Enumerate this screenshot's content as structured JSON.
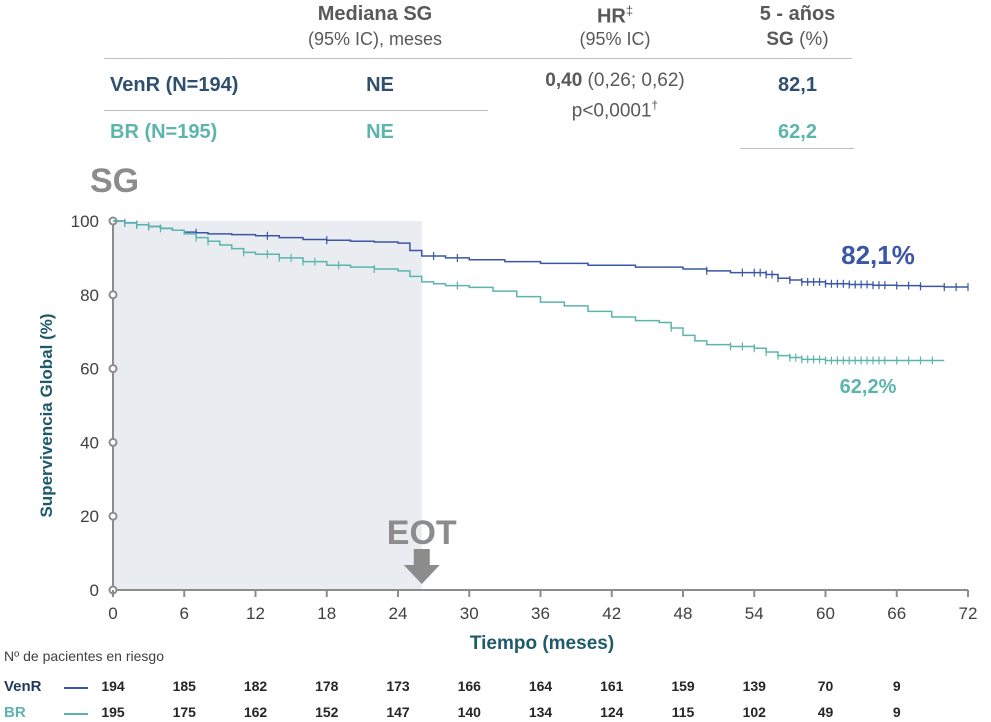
{
  "table": {
    "col_median_title": "Mediana SG",
    "col_median_sub": "(95% IC), meses",
    "col_hr_title": "HR",
    "col_hr_sup": "‡",
    "col_hr_sub": "(95% IC)",
    "col_5y_title": "5 - años",
    "col_5y_sub_bold": "SG",
    "col_5y_sub_rest": " (%)",
    "venr_label": "VenR (N=194)",
    "venr_median": "NE",
    "venr_5y": "82,1",
    "br_label": "BR (N=195)",
    "br_median": "NE",
    "br_5y": "62,2",
    "hr_value": "0,40",
    "hr_ci": " (0,26; 0,62)",
    "p_value": "p<0,0001",
    "p_sup": "†"
  },
  "colors": {
    "venr": "#3b56a6",
    "br": "#5cb5ad",
    "axis": "#8c8c8c",
    "shade": "#e9ecf0",
    "label": "#1f5a6a"
  },
  "chart_data": {
    "type": "line",
    "title": "SG",
    "xlabel": "Tiempo (meses)",
    "ylabel": "Supervivencia Global (%)",
    "xlim": [
      0,
      72
    ],
    "ylim": [
      0,
      100
    ],
    "xticks": [
      "0",
      "6",
      "12",
      "18",
      "24",
      "30",
      "36",
      "42",
      "48",
      "54",
      "60",
      "66",
      "72"
    ],
    "yticks": [
      "0",
      "20",
      "40",
      "60",
      "80",
      "100"
    ],
    "shaded_region": [
      0,
      26
    ],
    "annotation_eot": {
      "label": "EOT",
      "x": 26
    },
    "end_labels": {
      "venr": "82,1%",
      "br": "62,2%"
    },
    "series": [
      {
        "name": "VenR",
        "x": [
          0,
          1,
          2,
          3,
          4,
          5,
          6,
          7,
          8,
          10,
          12,
          14,
          16,
          18,
          20,
          22,
          24,
          25,
          26,
          28,
          30,
          33,
          36,
          40,
          44,
          48,
          50,
          52,
          54,
          55,
          56,
          57,
          58,
          60,
          62,
          64,
          66,
          68,
          70,
          72
        ],
        "y": [
          100,
          99.5,
          99,
          98.5,
          98,
          97.5,
          97,
          96.8,
          96.5,
          96.3,
          96,
          95.5,
          95,
          94.8,
          94.5,
          94.3,
          94,
          92,
          90.5,
          90,
          89.5,
          89,
          88.5,
          88,
          87.5,
          87,
          86.5,
          86,
          86,
          85.5,
          84.5,
          84,
          83.5,
          83,
          82.8,
          82.6,
          82.5,
          82.3,
          82.1,
          82.1
        ],
        "censor_x": [
          1,
          2,
          3,
          7,
          13,
          18,
          27,
          29,
          50,
          53,
          54,
          54.5,
          55,
          55.5,
          56,
          57,
          58,
          58.5,
          59,
          59.5,
          60,
          60.5,
          61,
          61.5,
          62,
          62.5,
          63,
          63.5,
          64,
          64.5,
          65,
          66,
          67,
          68,
          70,
          71,
          72
        ]
      },
      {
        "name": "BR",
        "x": [
          0,
          1,
          2,
          3,
          4,
          5,
          6,
          7,
          8,
          9,
          10,
          11,
          12,
          14,
          16,
          18,
          20,
          22,
          24,
          25,
          26,
          27,
          28,
          30,
          32,
          34,
          36,
          38,
          40,
          42,
          44,
          46,
          47,
          48,
          49,
          50,
          52,
          54,
          55,
          56,
          57,
          58,
          60,
          62,
          64,
          66,
          68,
          70
        ],
        "y": [
          100,
          99.5,
          99,
          98.5,
          98,
          97.5,
          96.5,
          95.5,
          94.5,
          93.5,
          92.5,
          91.5,
          91,
          90,
          89,
          88,
          87.5,
          87,
          86.5,
          85,
          83.5,
          83,
          82.5,
          82,
          81,
          79.5,
          78,
          77,
          75.5,
          74,
          73,
          72.5,
          71,
          69,
          67.5,
          66.5,
          66,
          65.5,
          64.5,
          63.5,
          63,
          62.5,
          62.2,
          62.2,
          62.2,
          62.2,
          62.2,
          62.2
        ],
        "censor_x": [
          1,
          2,
          3,
          4,
          7,
          8,
          11,
          13,
          14,
          15,
          16,
          17,
          19,
          22,
          29,
          47,
          52,
          53,
          54,
          55,
          56,
          57,
          57.5,
          58,
          58.5,
          59,
          59.5,
          60,
          60.5,
          61,
          61.5,
          62,
          62.5,
          63,
          63.5,
          64,
          64.5,
          65,
          66,
          67,
          68,
          69
        ]
      }
    ]
  },
  "risk_table": {
    "title": "Nº de pacientes en riesgo",
    "rows": [
      {
        "name": "VenR",
        "values": [
          "194",
          "185",
          "182",
          "178",
          "173",
          "166",
          "164",
          "161",
          "159",
          "139",
          "70",
          "9"
        ]
      },
      {
        "name": "BR",
        "values": [
          "195",
          "175",
          "162",
          "152",
          "147",
          "140",
          "134",
          "124",
          "115",
          "102",
          "49",
          "9"
        ]
      }
    ]
  }
}
